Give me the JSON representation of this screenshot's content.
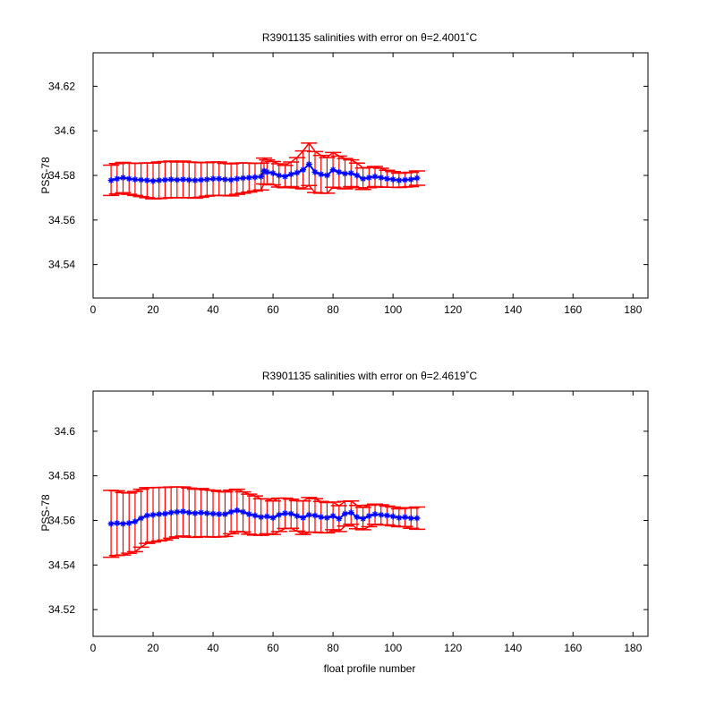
{
  "chart_data": [
    {
      "type": "line",
      "title": "R3901135 salinities with error on θ=2.4001˚C",
      "xlabel": "",
      "ylabel": "PSS-78",
      "xlim": [
        0,
        185
      ],
      "ylim": [
        34.525,
        34.635
      ],
      "xticks": [
        0,
        20,
        40,
        60,
        80,
        100,
        120,
        140,
        160,
        180
      ],
      "yticks": [
        34.54,
        34.56,
        34.58,
        34.6,
        34.62
      ],
      "ytick_labels": [
        "34.54",
        "34.56",
        "34.58",
        "34.6",
        "34.62"
      ],
      "grid": false,
      "series": [
        {
          "color": "#0000ff",
          "marker": "star",
          "x": [
            6,
            8,
            10,
            12,
            14,
            16,
            18,
            20,
            22,
            24,
            26,
            28,
            30,
            32,
            34,
            36,
            38,
            40,
            42,
            44,
            46,
            48,
            50,
            52,
            54,
            56,
            57,
            58,
            60,
            62,
            64,
            66,
            68,
            70,
            72,
            74,
            76,
            78,
            80,
            82,
            84,
            86,
            88,
            90,
            92,
            94,
            96,
            98,
            100,
            102,
            104,
            106,
            108
          ],
          "y": [
            34.5778,
            34.5785,
            34.579,
            34.5785,
            34.5782,
            34.578,
            34.5778,
            34.5775,
            34.5778,
            34.578,
            34.5782,
            34.578,
            34.5782,
            34.578,
            34.5778,
            34.578,
            34.5782,
            34.5785,
            34.5785,
            34.5782,
            34.578,
            34.5785,
            34.5788,
            34.579,
            34.5792,
            34.5795,
            34.582,
            34.5815,
            34.581,
            34.58,
            34.5795,
            34.5805,
            34.5812,
            34.5825,
            34.585,
            34.5815,
            34.5805,
            34.58,
            34.5825,
            34.5815,
            34.5808,
            34.581,
            34.58,
            34.5785,
            34.579,
            34.5795,
            34.579,
            34.5785,
            34.5782,
            34.5778,
            34.578,
            34.5782,
            34.5788
          ],
          "err": [
            0.0068,
            0.0068,
            0.0068,
            0.007,
            0.0072,
            0.0075,
            0.0078,
            0.008,
            0.0082,
            0.0082,
            0.0082,
            0.008,
            0.0082,
            0.008,
            0.008,
            0.0078,
            0.0075,
            0.0075,
            0.0075,
            0.0072,
            0.0072,
            0.007,
            0.0068,
            0.0065,
            0.0062,
            0.006,
            0.0058,
            0.0055,
            0.0052,
            0.0052,
            0.005,
            0.0055,
            0.0068,
            0.0085,
            0.0095,
            0.0092,
            0.0085,
            0.008,
            0.0078,
            0.0072,
            0.0068,
            0.006,
            0.0055,
            0.0048,
            0.0045,
            0.0045,
            0.0042,
            0.0038,
            0.0035,
            0.0032,
            0.0032,
            0.0032,
            0.0032
          ]
        }
      ]
    },
    {
      "type": "line",
      "title": "R3901135 salinities with error on θ=2.4619˚C",
      "xlabel": "float profile number",
      "ylabel": "PSS-78",
      "xlim": [
        0,
        185
      ],
      "ylim": [
        34.508,
        34.618
      ],
      "xticks": [
        0,
        20,
        40,
        60,
        80,
        100,
        120,
        140,
        160,
        180
      ],
      "yticks": [
        34.52,
        34.54,
        34.56,
        34.58,
        34.6
      ],
      "ytick_labels": [
        "34.52",
        "34.54",
        "34.56",
        "34.58",
        "34.6"
      ],
      "grid": false,
      "series": [
        {
          "color": "#0000ff",
          "marker": "star",
          "x": [
            6,
            8,
            10,
            12,
            14,
            16,
            18,
            20,
            22,
            24,
            26,
            28,
            30,
            32,
            34,
            36,
            38,
            40,
            42,
            44,
            46,
            48,
            50,
            52,
            54,
            56,
            58,
            60,
            62,
            64,
            66,
            68,
            70,
            72,
            74,
            76,
            78,
            80,
            82,
            84,
            86,
            88,
            90,
            92,
            94,
            96,
            98,
            100,
            102,
            104,
            106,
            108
          ],
          "y": [
            34.5585,
            34.5588,
            34.5585,
            34.5588,
            34.5595,
            34.561,
            34.5622,
            34.5625,
            34.5628,
            34.563,
            34.5635,
            34.5638,
            34.564,
            34.5635,
            34.5632,
            34.5635,
            34.5632,
            34.563,
            34.5628,
            34.5628,
            34.5638,
            34.5645,
            34.5638,
            34.5628,
            34.5622,
            34.5615,
            34.5618,
            34.5612,
            34.5625,
            34.5632,
            34.563,
            34.562,
            34.5612,
            34.5625,
            34.5622,
            34.5615,
            34.5612,
            34.562,
            34.5608,
            34.563,
            34.5635,
            34.5615,
            34.5608,
            34.562,
            34.5628,
            34.5625,
            34.5622,
            34.5618,
            34.5612,
            34.5615,
            34.561,
            34.561
          ],
          "err": [
            0.015,
            0.0145,
            0.014,
            0.0135,
            0.0135,
            0.013,
            0.0125,
            0.0122,
            0.012,
            0.0118,
            0.0115,
            0.0112,
            0.011,
            0.011,
            0.0108,
            0.0108,
            0.0105,
            0.0105,
            0.0102,
            0.01,
            0.0098,
            0.0095,
            0.009,
            0.009,
            0.0088,
            0.0082,
            0.0078,
            0.0075,
            0.0075,
            0.0068,
            0.0065,
            0.0068,
            0.0075,
            0.0078,
            0.0075,
            0.007,
            0.0068,
            0.0062,
            0.0058,
            0.0055,
            0.0052,
            0.0052,
            0.005,
            0.0048,
            0.0045,
            0.0045,
            0.0042,
            0.0042,
            0.004,
            0.0042,
            0.0045,
            0.005
          ]
        }
      ]
    }
  ],
  "colors": {
    "errorbar": "#ff0000",
    "series": "#0000ff"
  }
}
